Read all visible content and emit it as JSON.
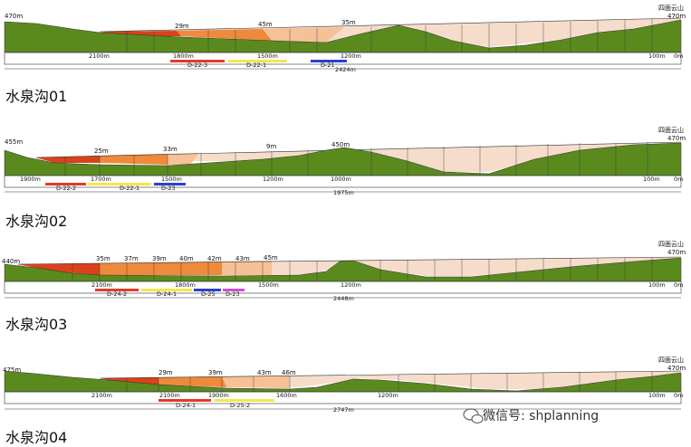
{
  "sections": [
    {
      "title": "水泉沟01",
      "left_height": "470m",
      "right_name": "四面云山",
      "right_height": "470m",
      "heights": [
        "29m",
        "45m",
        "35m"
      ],
      "distances": [
        "2100m",
        "1800m",
        "1500m",
        "1200m",
        "100m",
        "0m"
      ],
      "total": "2424m",
      "dams": [
        "D-22-3",
        "D-22-1",
        "D-21"
      ],
      "colors": {
        "ground": "#5a8a1e",
        "reservoir_deep": "#d9421a",
        "reservoir_mid": "#ee8a3c",
        "reservoir_light": "#f6c196",
        "reservoir_pale": "#f5dccb"
      }
    },
    {
      "title": "水泉沟02",
      "left_height": "455m",
      "right_name": "四面云山",
      "right_height": "470m",
      "heights": [
        "25m",
        "33m",
        "9m",
        "450m"
      ],
      "distances": [
        "1900m",
        "1700m",
        "1500m",
        "1200m",
        "1000m",
        "100m",
        "0m"
      ],
      "total": "1975m",
      "dams": [
        "D-22-2",
        "D-22-1",
        "D-23"
      ]
    },
    {
      "title": "水泉沟03",
      "left_height": "440m",
      "right_name": "四面云山",
      "right_height": "470m",
      "heights": [
        "35m",
        "37m",
        "39m",
        "40m",
        "42m",
        "43m",
        "45m"
      ],
      "distances": [
        "2100m",
        "1800m",
        "1500m",
        "1200m",
        "100m",
        "0m"
      ],
      "total": "2448m",
      "dams": [
        "D-24-2",
        "D-24-1",
        "D-25",
        "D-23"
      ]
    },
    {
      "title": "水泉沟04",
      "left_height": "475m",
      "right_name": "四面云山",
      "right_height": "470m",
      "heights": [
        "29m",
        "39m",
        "43m",
        "46m"
      ],
      "distances": [
        "2100m",
        "2100m",
        "1900m",
        "1600m",
        "1200m",
        "100m",
        "0m"
      ],
      "total": "2747m",
      "dams": [
        "D-24-1",
        "D-25-2"
      ]
    }
  ],
  "watermark": "微信号: shplanning"
}
